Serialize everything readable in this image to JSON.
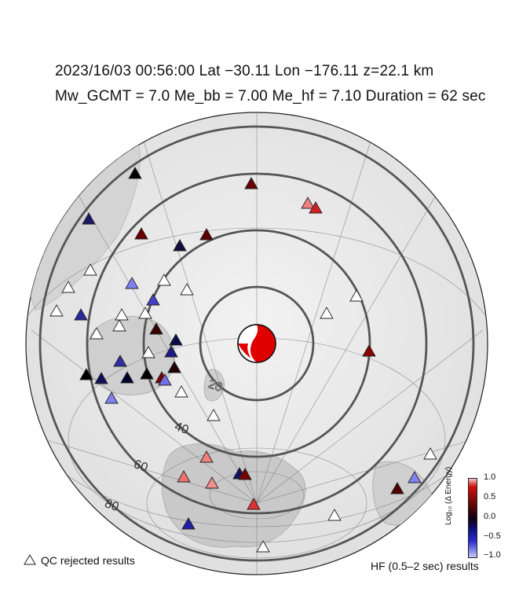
{
  "header": {
    "line1": "2023/16/03  00:56:00   Lat −30.11    Lon −176.11   z=22.1 km",
    "line2": "Mw_GCMT = 7.0   Me_bb = 7.00   Me_hf = 7.10   Duration = 62 sec"
  },
  "distance_rings": {
    "unit_note": "",
    "labels": [
      "20",
      "40",
      "60",
      "80"
    ]
  },
  "colorbar": {
    "label": "Log₁₀ (Δ Energy)",
    "ticks": [
      "1.0",
      "0.5",
      "0.0",
      "−0.5",
      "−1.0"
    ]
  },
  "legend": {
    "qc_rejected": "QC rejected results",
    "hf_results": "HF (0.5–2 sec) results"
  },
  "colors": {
    "ring": "#555555",
    "beachball_fill": "#e00000",
    "qc_triangle": "#ffffff"
  },
  "stations": [
    {
      "c": "#000000"
    },
    {
      "c": "#6b0000"
    },
    {
      "c": "#f08080"
    },
    {
      "c": "#d02020"
    },
    {
      "c": "#1a1a6b"
    },
    {
      "c": "#6b0000"
    },
    {
      "c": "#10103a"
    },
    {
      "c": "#5a0000"
    },
    {
      "c": "#ffffff"
    },
    {
      "c": "#ffffff"
    },
    {
      "c": "#8080f0"
    },
    {
      "c": "#ffffff"
    },
    {
      "c": "#ffffff"
    },
    {
      "c": "#ffffff"
    },
    {
      "c": "#4040c0"
    },
    {
      "c": "#ffffff"
    },
    {
      "c": "#2a2a9a"
    },
    {
      "c": "#ffffff"
    },
    {
      "c": "#ffffff"
    },
    {
      "c": "#ffffff"
    },
    {
      "c": "#3a0000"
    },
    {
      "c": "#0b0b4a"
    },
    {
      "c": "#1a1a80"
    },
    {
      "c": "#8a0000"
    },
    {
      "c": "#ffffff"
    },
    {
      "c": "#3030a0"
    },
    {
      "c": "#200000"
    },
    {
      "c": "#000000"
    },
    {
      "c": "#10105a"
    },
    {
      "c": "#000030"
    },
    {
      "c": "#000000"
    },
    {
      "c": "#7a0000"
    },
    {
      "c": "#8080f0"
    },
    {
      "c": "#ffffff"
    },
    {
      "c": "#7070e0"
    },
    {
      "c": "#ffffff"
    },
    {
      "c": "#ffffff"
    },
    {
      "c": "#ffffff"
    },
    {
      "c": "#f08080"
    },
    {
      "c": "#f07070"
    },
    {
      "c": "#f09090"
    },
    {
      "c": "#101060"
    },
    {
      "c": "#7a0000"
    },
    {
      "c": "#8080f0"
    },
    {
      "c": "#500000"
    },
    {
      "c": "#ffffff"
    },
    {
      "c": "#e03030"
    },
    {
      "c": "#ffffff"
    },
    {
      "c": "#2020a0"
    },
    {
      "c": "#ffffff"
    }
  ]
}
